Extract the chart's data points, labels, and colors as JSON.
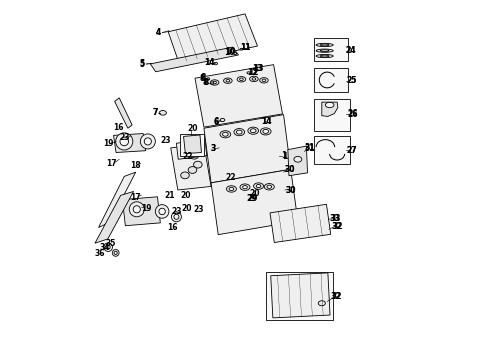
{
  "figsize": [
    4.9,
    3.6
  ],
  "dpi": 100,
  "background_color": "#ffffff",
  "line_color": "#000000",
  "label_fontsize": 5.5,
  "label_fontweight": "bold",
  "fill_light": "#efefef",
  "fill_mid": "#e4e4e4",
  "fill_white": "#f8f8f8"
}
